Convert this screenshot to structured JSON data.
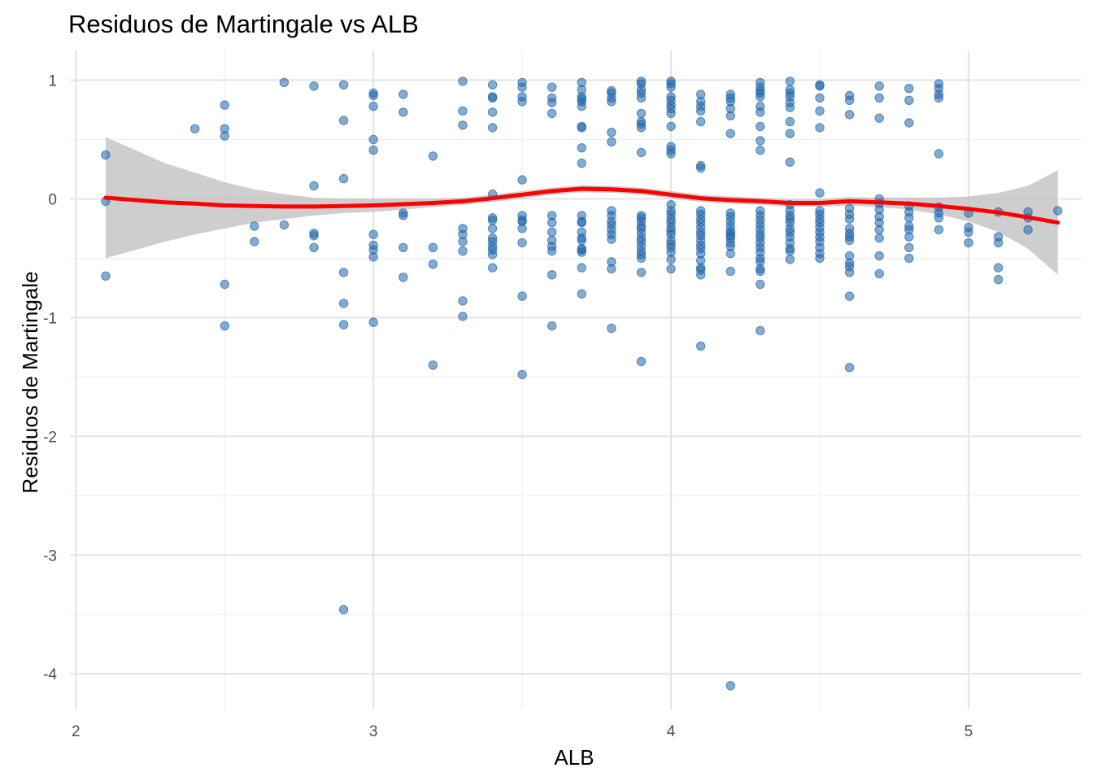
{
  "chart_data": {
    "type": "scatter",
    "title": "Residuos de Martingale vs ALB",
    "xlabel": "ALB",
    "ylabel": "Residuos de Martingale",
    "xlim": [
      1.98,
      5.38
    ],
    "ylim": [
      -4.3,
      1.25
    ],
    "x_ticks": [
      2,
      3,
      4,
      5
    ],
    "x_tick_labels": [
      "2",
      "3",
      "4",
      "5"
    ],
    "y_ticks": [
      1,
      0,
      -1,
      -2,
      -3,
      -4
    ],
    "y_tick_labels": [
      "1",
      "0",
      "-1",
      "-2",
      "-3",
      "-4"
    ],
    "x_minor_ticks": [
      2.5,
      3.5,
      4.5
    ],
    "y_minor_ticks": [
      0.5,
      -0.5,
      -1.5,
      -2.5,
      -3.5
    ],
    "grid": true,
    "legend": "none",
    "colors": {
      "points": "#2166ac",
      "smooth": "#ff0000",
      "ribbon": "#bebebe"
    },
    "points": [
      [
        2.1,
        0.37
      ],
      [
        2.1,
        -0.02
      ],
      [
        2.1,
        -0.65
      ],
      [
        2.4,
        0.59
      ],
      [
        2.5,
        0.79
      ],
      [
        2.5,
        0.59
      ],
      [
        2.5,
        0.53
      ],
      [
        2.5,
        -0.72
      ],
      [
        2.5,
        -1.07
      ],
      [
        2.6,
        -0.23
      ],
      [
        2.6,
        -0.36
      ],
      [
        2.7,
        0.98
      ],
      [
        2.7,
        -0.22
      ],
      [
        2.8,
        0.95
      ],
      [
        2.8,
        0.11
      ],
      [
        2.8,
        -0.29
      ],
      [
        2.8,
        -0.31
      ],
      [
        2.8,
        -0.41
      ],
      [
        2.9,
        0.96
      ],
      [
        2.9,
        0.66
      ],
      [
        2.9,
        0.17
      ],
      [
        2.9,
        -0.62
      ],
      [
        2.9,
        -0.88
      ],
      [
        2.9,
        -1.06
      ],
      [
        2.9,
        -3.46
      ],
      [
        3.0,
        0.89
      ],
      [
        3.0,
        0.87
      ],
      [
        3.0,
        0.78
      ],
      [
        3.0,
        0.5
      ],
      [
        3.0,
        0.41
      ],
      [
        3.0,
        -0.3
      ],
      [
        3.0,
        -0.39
      ],
      [
        3.0,
        -0.43
      ],
      [
        3.0,
        -0.49
      ],
      [
        3.0,
        -1.04
      ],
      [
        3.1,
        0.88
      ],
      [
        3.1,
        0.73
      ],
      [
        3.1,
        -0.12
      ],
      [
        3.1,
        -0.14
      ],
      [
        3.1,
        -0.41
      ],
      [
        3.1,
        -0.66
      ],
      [
        3.2,
        0.36
      ],
      [
        3.2,
        -0.41
      ],
      [
        3.2,
        -0.55
      ],
      [
        3.2,
        -1.4
      ],
      [
        3.3,
        0.99
      ],
      [
        3.3,
        0.74
      ],
      [
        3.3,
        0.62
      ],
      [
        3.3,
        -0.25
      ],
      [
        3.3,
        -0.3
      ],
      [
        3.3,
        -0.36
      ],
      [
        3.3,
        -0.44
      ],
      [
        3.3,
        -0.86
      ],
      [
        3.3,
        -0.99
      ],
      [
        3.4,
        0.96
      ],
      [
        3.4,
        0.86
      ],
      [
        3.4,
        0.85
      ],
      [
        3.4,
        0.73
      ],
      [
        3.4,
        0.6
      ],
      [
        3.4,
        0.04
      ],
      [
        3.4,
        -0.16
      ],
      [
        3.4,
        -0.18
      ],
      [
        3.4,
        -0.25
      ],
      [
        3.4,
        -0.33
      ],
      [
        3.4,
        -0.36
      ],
      [
        3.4,
        -0.4
      ],
      [
        3.4,
        -0.43
      ],
      [
        3.4,
        -0.47
      ],
      [
        3.4,
        -0.58
      ],
      [
        3.5,
        0.98
      ],
      [
        3.5,
        0.94
      ],
      [
        3.5,
        0.86
      ],
      [
        3.5,
        0.82
      ],
      [
        3.5,
        0.16
      ],
      [
        3.5,
        -0.14
      ],
      [
        3.5,
        -0.18
      ],
      [
        3.5,
        -0.19
      ],
      [
        3.5,
        -0.25
      ],
      [
        3.5,
        -0.37
      ],
      [
        3.5,
        -0.82
      ],
      [
        3.5,
        -1.48
      ],
      [
        3.6,
        0.94
      ],
      [
        3.6,
        0.85
      ],
      [
        3.6,
        0.81
      ],
      [
        3.6,
        0.72
      ],
      [
        3.6,
        -0.14
      ],
      [
        3.6,
        -0.2
      ],
      [
        3.6,
        -0.28
      ],
      [
        3.6,
        -0.35
      ],
      [
        3.6,
        -0.4
      ],
      [
        3.6,
        -0.44
      ],
      [
        3.6,
        -0.64
      ],
      [
        3.6,
        -1.07
      ],
      [
        3.7,
        0.98
      ],
      [
        3.7,
        0.92
      ],
      [
        3.7,
        0.86
      ],
      [
        3.7,
        0.84
      ],
      [
        3.7,
        0.82
      ],
      [
        3.7,
        0.78
      ],
      [
        3.7,
        0.61
      ],
      [
        3.7,
        0.6
      ],
      [
        3.7,
        0.43
      ],
      [
        3.7,
        0.3
      ],
      [
        3.7,
        -0.14
      ],
      [
        3.7,
        -0.19
      ],
      [
        3.7,
        -0.2
      ],
      [
        3.7,
        -0.28
      ],
      [
        3.7,
        -0.33
      ],
      [
        3.7,
        -0.35
      ],
      [
        3.7,
        -0.42
      ],
      [
        3.7,
        -0.43
      ],
      [
        3.7,
        -0.45
      ],
      [
        3.7,
        -0.58
      ],
      [
        3.7,
        -0.8
      ],
      [
        3.8,
        0.91
      ],
      [
        3.8,
        0.89
      ],
      [
        3.8,
        0.85
      ],
      [
        3.8,
        0.82
      ],
      [
        3.8,
        0.56
      ],
      [
        3.8,
        0.48
      ],
      [
        3.8,
        -0.1
      ],
      [
        3.8,
        -0.14
      ],
      [
        3.8,
        -0.19
      ],
      [
        3.8,
        -0.22
      ],
      [
        3.8,
        -0.26
      ],
      [
        3.8,
        -0.3
      ],
      [
        3.8,
        -0.34
      ],
      [
        3.8,
        -0.53
      ],
      [
        3.8,
        -0.59
      ],
      [
        3.8,
        -1.09
      ],
      [
        3.9,
        0.99
      ],
      [
        3.9,
        0.97
      ],
      [
        3.9,
        0.92
      ],
      [
        3.9,
        0.89
      ],
      [
        3.9,
        0.85
      ],
      [
        3.9,
        0.72
      ],
      [
        3.9,
        0.65
      ],
      [
        3.9,
        0.63
      ],
      [
        3.9,
        0.6
      ],
      [
        3.9,
        0.39
      ],
      [
        3.9,
        -0.14
      ],
      [
        3.9,
        -0.16
      ],
      [
        3.9,
        -0.19
      ],
      [
        3.9,
        -0.23
      ],
      [
        3.9,
        -0.25
      ],
      [
        3.9,
        -0.29
      ],
      [
        3.9,
        -0.33
      ],
      [
        3.9,
        -0.36
      ],
      [
        3.9,
        -0.4
      ],
      [
        3.9,
        -0.44
      ],
      [
        3.9,
        -0.47
      ],
      [
        3.9,
        -0.5
      ],
      [
        3.9,
        -0.62
      ],
      [
        3.9,
        -1.37
      ],
      [
        4.0,
        0.99
      ],
      [
        4.0,
        0.97
      ],
      [
        4.0,
        0.94
      ],
      [
        4.0,
        0.86
      ],
      [
        4.0,
        0.83
      ],
      [
        4.0,
        0.79
      ],
      [
        4.0,
        0.76
      ],
      [
        4.0,
        0.72
      ],
      [
        4.0,
        0.61
      ],
      [
        4.0,
        0.44
      ],
      [
        4.0,
        0.41
      ],
      [
        4.0,
        0.38
      ],
      [
        4.0,
        -0.05
      ],
      [
        4.0,
        -0.1
      ],
      [
        4.0,
        -0.13
      ],
      [
        4.0,
        -0.17
      ],
      [
        4.0,
        -0.2
      ],
      [
        4.0,
        -0.24
      ],
      [
        4.0,
        -0.27
      ],
      [
        4.0,
        -0.3
      ],
      [
        4.0,
        -0.35
      ],
      [
        4.0,
        -0.38
      ],
      [
        4.0,
        -0.41
      ],
      [
        4.0,
        -0.45
      ],
      [
        4.0,
        -0.51
      ],
      [
        4.0,
        -0.59
      ],
      [
        4.1,
        0.88
      ],
      [
        4.1,
        0.82
      ],
      [
        4.1,
        0.78
      ],
      [
        4.1,
        0.74
      ],
      [
        4.1,
        0.65
      ],
      [
        4.1,
        0.28
      ],
      [
        4.1,
        0.26
      ],
      [
        4.1,
        -0.1
      ],
      [
        4.1,
        -0.13
      ],
      [
        4.1,
        -0.17
      ],
      [
        4.1,
        -0.2
      ],
      [
        4.1,
        -0.24
      ],
      [
        4.1,
        -0.28
      ],
      [
        4.1,
        -0.31
      ],
      [
        4.1,
        -0.35
      ],
      [
        4.1,
        -0.39
      ],
      [
        4.1,
        -0.42
      ],
      [
        4.1,
        -0.46
      ],
      [
        4.1,
        -0.52
      ],
      [
        4.1,
        -0.58
      ],
      [
        4.1,
        -0.6
      ],
      [
        4.1,
        -0.64
      ],
      [
        4.1,
        -1.24
      ],
      [
        4.2,
        0.88
      ],
      [
        4.2,
        0.85
      ],
      [
        4.2,
        0.82
      ],
      [
        4.2,
        0.76
      ],
      [
        4.2,
        0.7
      ],
      [
        4.2,
        0.55
      ],
      [
        4.2,
        -0.12
      ],
      [
        4.2,
        -0.15
      ],
      [
        4.2,
        -0.19
      ],
      [
        4.2,
        -0.23
      ],
      [
        4.2,
        -0.27
      ],
      [
        4.2,
        -0.29
      ],
      [
        4.2,
        -0.31
      ],
      [
        4.2,
        -0.33
      ],
      [
        4.2,
        -0.37
      ],
      [
        4.2,
        -0.4
      ],
      [
        4.2,
        -0.46
      ],
      [
        4.2,
        -0.61
      ],
      [
        4.2,
        -4.1
      ],
      [
        4.3,
        0.98
      ],
      [
        4.3,
        0.94
      ],
      [
        4.3,
        0.91
      ],
      [
        4.3,
        0.89
      ],
      [
        4.3,
        0.86
      ],
      [
        4.3,
        0.78
      ],
      [
        4.3,
        0.73
      ],
      [
        4.3,
        0.61
      ],
      [
        4.3,
        0.49
      ],
      [
        4.3,
        0.41
      ],
      [
        4.3,
        -0.1
      ],
      [
        4.3,
        -0.14
      ],
      [
        4.3,
        -0.18
      ],
      [
        4.3,
        -0.22
      ],
      [
        4.3,
        -0.26
      ],
      [
        4.3,
        -0.3
      ],
      [
        4.3,
        -0.33
      ],
      [
        4.3,
        -0.37
      ],
      [
        4.3,
        -0.41
      ],
      [
        4.3,
        -0.45
      ],
      [
        4.3,
        -0.5
      ],
      [
        4.3,
        -0.53
      ],
      [
        4.3,
        -0.59
      ],
      [
        4.3,
        -0.61
      ],
      [
        4.3,
        -0.72
      ],
      [
        4.3,
        -1.11
      ],
      [
        4.4,
        0.99
      ],
      [
        4.4,
        0.92
      ],
      [
        4.4,
        0.89
      ],
      [
        4.4,
        0.86
      ],
      [
        4.4,
        0.81
      ],
      [
        4.4,
        0.77
      ],
      [
        4.4,
        0.65
      ],
      [
        4.4,
        0.55
      ],
      [
        4.4,
        0.31
      ],
      [
        4.4,
        -0.05
      ],
      [
        4.4,
        -0.1
      ],
      [
        4.4,
        -0.14
      ],
      [
        4.4,
        -0.17
      ],
      [
        4.4,
        -0.2
      ],
      [
        4.4,
        -0.25
      ],
      [
        4.4,
        -0.28
      ],
      [
        4.4,
        -0.32
      ],
      [
        4.4,
        -0.37
      ],
      [
        4.4,
        -0.42
      ],
      [
        4.4,
        -0.44
      ],
      [
        4.4,
        -0.51
      ],
      [
        4.5,
        0.96
      ],
      [
        4.5,
        0.95
      ],
      [
        4.5,
        0.85
      ],
      [
        4.5,
        0.74
      ],
      [
        4.5,
        0.6
      ],
      [
        4.5,
        0.05
      ],
      [
        4.5,
        -0.1
      ],
      [
        4.5,
        -0.13
      ],
      [
        4.5,
        -0.17
      ],
      [
        4.5,
        -0.2
      ],
      [
        4.5,
        -0.24
      ],
      [
        4.5,
        -0.28
      ],
      [
        4.5,
        -0.32
      ],
      [
        4.5,
        -0.36
      ],
      [
        4.5,
        -0.41
      ],
      [
        4.5,
        -0.46
      ],
      [
        4.5,
        -0.5
      ],
      [
        4.6,
        0.87
      ],
      [
        4.6,
        0.83
      ],
      [
        4.6,
        0.71
      ],
      [
        4.6,
        -0.08
      ],
      [
        4.6,
        -0.13
      ],
      [
        4.6,
        -0.17
      ],
      [
        4.6,
        -0.25
      ],
      [
        4.6,
        -0.29
      ],
      [
        4.6,
        -0.32
      ],
      [
        4.6,
        -0.35
      ],
      [
        4.6,
        -0.48
      ],
      [
        4.6,
        -0.54
      ],
      [
        4.6,
        -0.57
      ],
      [
        4.6,
        -0.62
      ],
      [
        4.6,
        -0.82
      ],
      [
        4.6,
        -1.42
      ],
      [
        4.7,
        0.95
      ],
      [
        4.7,
        0.85
      ],
      [
        4.7,
        0.68
      ],
      [
        4.7,
        0.0
      ],
      [
        4.7,
        -0.04
      ],
      [
        4.7,
        -0.09
      ],
      [
        4.7,
        -0.15
      ],
      [
        4.7,
        -0.2
      ],
      [
        4.7,
        -0.26
      ],
      [
        4.7,
        -0.33
      ],
      [
        4.7,
        -0.48
      ],
      [
        4.7,
        -0.63
      ],
      [
        4.8,
        0.93
      ],
      [
        4.8,
        0.83
      ],
      [
        4.8,
        0.64
      ],
      [
        4.8,
        -0.06
      ],
      [
        4.8,
        -0.11
      ],
      [
        4.8,
        -0.16
      ],
      [
        4.8,
        -0.23
      ],
      [
        4.8,
        -0.26
      ],
      [
        4.8,
        -0.32
      ],
      [
        4.8,
        -0.41
      ],
      [
        4.8,
        -0.5
      ],
      [
        4.9,
        0.97
      ],
      [
        4.9,
        0.93
      ],
      [
        4.9,
        0.88
      ],
      [
        4.9,
        0.85
      ],
      [
        4.9,
        0.38
      ],
      [
        4.9,
        -0.07
      ],
      [
        4.9,
        -0.12
      ],
      [
        4.9,
        -0.16
      ],
      [
        4.9,
        -0.26
      ],
      [
        5.0,
        -0.12
      ],
      [
        5.0,
        -0.24
      ],
      [
        5.0,
        -0.28
      ],
      [
        5.0,
        -0.37
      ],
      [
        5.1,
        -0.11
      ],
      [
        5.1,
        -0.32
      ],
      [
        5.1,
        -0.37
      ],
      [
        5.1,
        -0.58
      ],
      [
        5.1,
        -0.68
      ],
      [
        5.2,
        -0.11
      ],
      [
        5.2,
        -0.16
      ],
      [
        5.2,
        -0.26
      ],
      [
        5.3,
        -0.1
      ]
    ],
    "smooth": {
      "x": [
        2.1,
        2.2,
        2.3,
        2.4,
        2.5,
        2.6,
        2.7,
        2.8,
        2.9,
        3.0,
        3.1,
        3.2,
        3.3,
        3.4,
        3.5,
        3.6,
        3.7,
        3.8,
        3.9,
        4.0,
        4.1,
        4.2,
        4.3,
        4.4,
        4.5,
        4.6,
        4.7,
        4.8,
        4.9,
        5.0,
        5.1,
        5.2,
        5.3
      ],
      "y": [
        0.01,
        -0.01,
        -0.03,
        -0.04,
        -0.055,
        -0.06,
        -0.065,
        -0.065,
        -0.06,
        -0.055,
        -0.045,
        -0.035,
        -0.02,
        0.005,
        0.035,
        0.065,
        0.085,
        0.08,
        0.065,
        0.035,
        0.005,
        -0.01,
        -0.02,
        -0.035,
        -0.035,
        -0.02,
        -0.03,
        -0.04,
        -0.06,
        -0.085,
        -0.115,
        -0.155,
        -0.2
      ],
      "lower": [
        -0.5,
        -0.43,
        -0.36,
        -0.3,
        -0.25,
        -0.2,
        -0.17,
        -0.14,
        -0.12,
        -0.11,
        -0.09,
        -0.07,
        -0.05,
        -0.025,
        0.005,
        0.035,
        0.055,
        0.05,
        0.035,
        0.005,
        -0.025,
        -0.04,
        -0.05,
        -0.065,
        -0.065,
        -0.055,
        -0.07,
        -0.09,
        -0.13,
        -0.19,
        -0.28,
        -0.42,
        -0.64
      ],
      "upper": [
        0.52,
        0.41,
        0.3,
        0.22,
        0.14,
        0.08,
        0.04,
        0.01,
        0.0,
        0.0,
        0.0,
        0.0,
        0.01,
        0.035,
        0.065,
        0.095,
        0.115,
        0.11,
        0.095,
        0.065,
        0.035,
        0.02,
        0.01,
        -0.005,
        -0.005,
        0.015,
        0.01,
        0.01,
        0.01,
        0.02,
        0.05,
        0.11,
        0.24
      ]
    }
  }
}
